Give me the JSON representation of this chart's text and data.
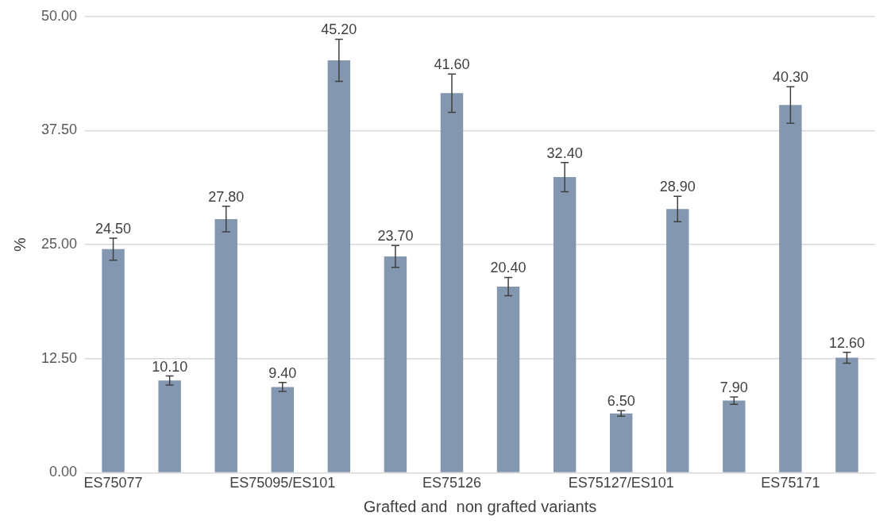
{
  "chart_data": {
    "type": "bar",
    "xlabel": "Grafted and  non grafted variants",
    "ylabel": "%",
    "categories": [
      "ES75077",
      null,
      null,
      "ES75095/ES101",
      null,
      null,
      "ES75126",
      null,
      null,
      "ES75127/ES101",
      null,
      null,
      "ES75171",
      null
    ],
    "values": [
      24.5,
      10.1,
      27.8,
      9.4,
      45.2,
      23.7,
      41.6,
      20.4,
      32.4,
      6.5,
      28.9,
      7.9,
      40.3,
      12.6
    ],
    "errors": [
      1.2,
      0.5,
      1.4,
      0.5,
      2.3,
      1.2,
      2.1,
      1.0,
      1.6,
      0.3,
      1.4,
      0.4,
      2.0,
      0.6
    ],
    "value_labels": [
      "24.50",
      "10.10",
      "27.80",
      "9.40",
      "45.20",
      "23.70",
      "41.60",
      "20.40",
      "32.40",
      "6.50",
      "28.90",
      "7.90",
      "40.30",
      "12.60"
    ],
    "color": "#8497b0",
    "grid": "y",
    "legend": false,
    "ylim": [
      0,
      50
    ],
    "yticks": [
      {
        "value": 0,
        "label": "0.00"
      },
      {
        "value": 12.5,
        "label": "12.50"
      },
      {
        "value": 25,
        "label": "25.00"
      },
      {
        "value": 37.5,
        "label": "37.50"
      },
      {
        "value": 50,
        "label": "50.00"
      }
    ]
  }
}
